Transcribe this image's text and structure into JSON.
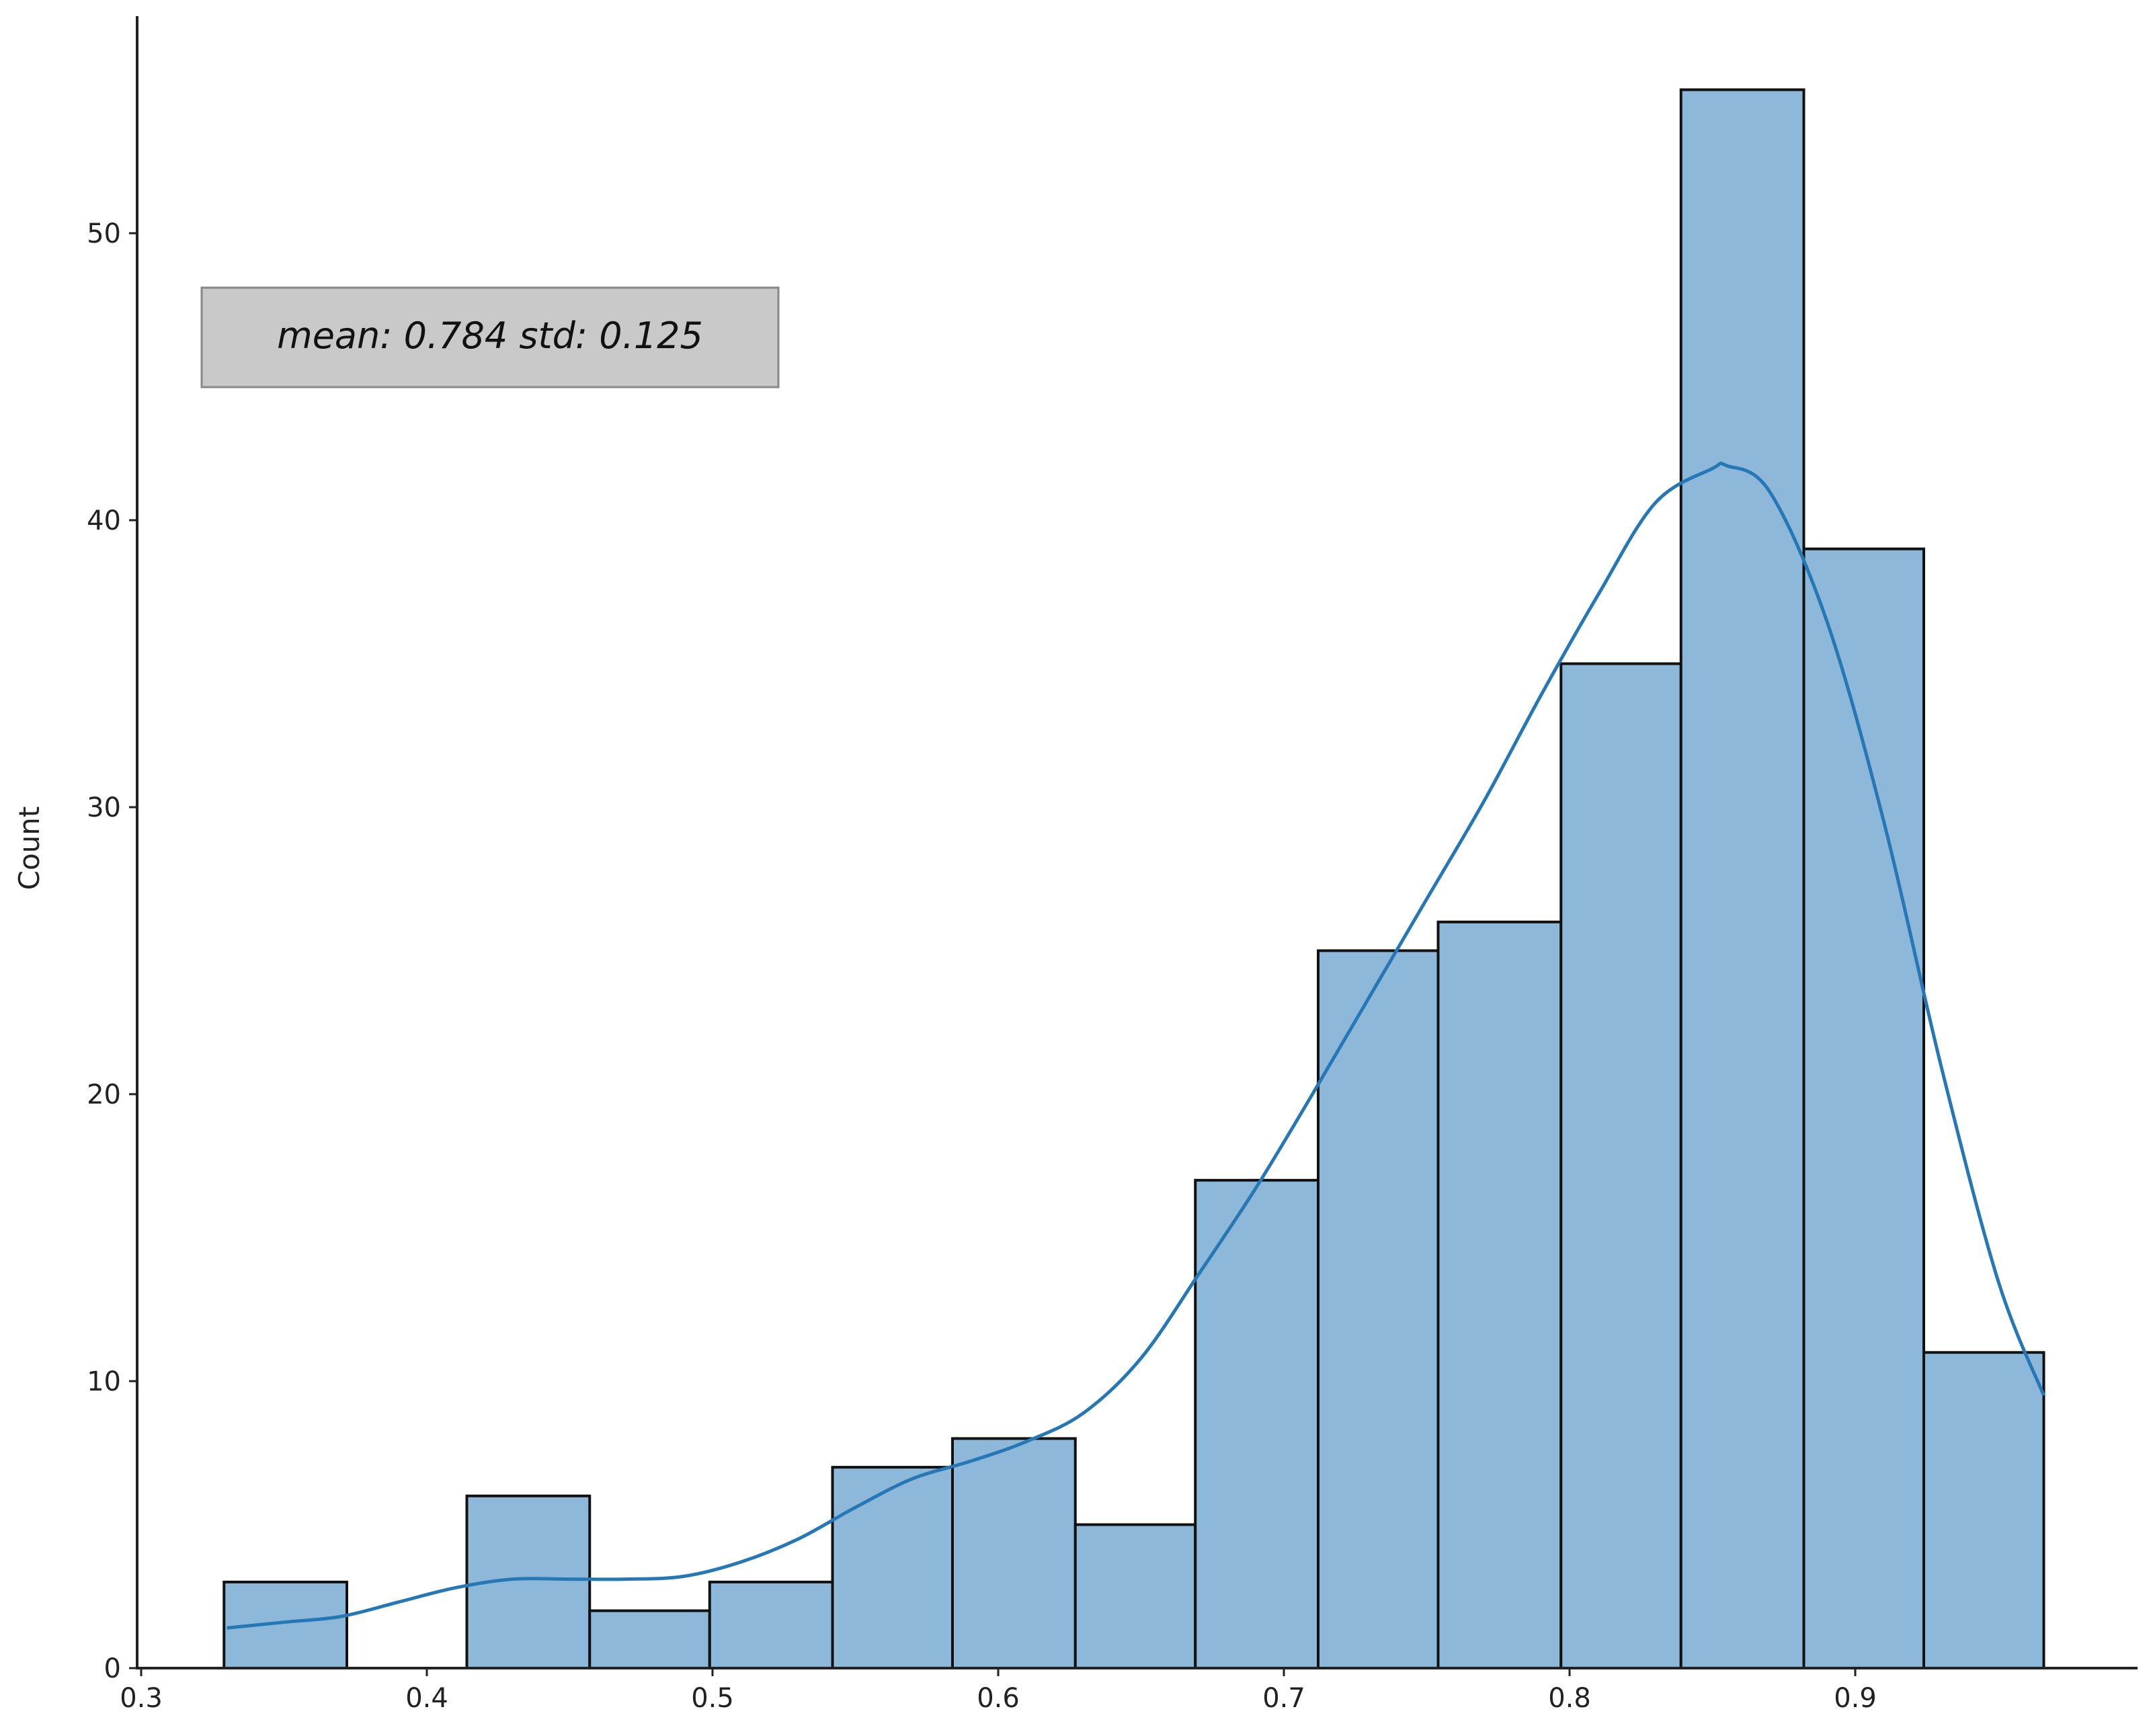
{
  "chart_data": {
    "type": "bar",
    "title": "",
    "xlabel": "",
    "ylabel": "Count",
    "xlim": [
      0.297,
      0.994
    ],
    "ylim": [
      0,
      57.7
    ],
    "x_ticks": [
      "0.3",
      "0.4",
      "0.5",
      "0.6",
      "0.7",
      "0.8",
      "0.9"
    ],
    "y_ticks": [
      "0",
      "10",
      "20",
      "30",
      "40",
      "50"
    ],
    "bins": [
      {
        "x0": 0.329,
        "x1": 0.372,
        "count": 3
      },
      {
        "x0": 0.372,
        "x1": 0.414,
        "count": 0
      },
      {
        "x0": 0.414,
        "x1": 0.457,
        "count": 6
      },
      {
        "x0": 0.457,
        "x1": 0.499,
        "count": 2
      },
      {
        "x0": 0.499,
        "x1": 0.542,
        "count": 3
      },
      {
        "x0": 0.542,
        "x1": 0.584,
        "count": 7
      },
      {
        "x0": 0.584,
        "x1": 0.627,
        "count": 8
      },
      {
        "x0": 0.627,
        "x1": 0.669,
        "count": 5
      },
      {
        "x0": 0.669,
        "x1": 0.712,
        "count": 17
      },
      {
        "x0": 0.712,
        "x1": 0.754,
        "count": 25
      },
      {
        "x0": 0.754,
        "x1": 0.797,
        "count": 26
      },
      {
        "x0": 0.797,
        "x1": 0.839,
        "count": 35
      },
      {
        "x0": 0.839,
        "x1": 0.882,
        "count": 55
      },
      {
        "x0": 0.882,
        "x1": 0.924,
        "count": 39
      },
      {
        "x0": 0.924,
        "x1": 0.966,
        "count": 11
      }
    ],
    "kde": {
      "x": [
        0.33,
        0.35,
        0.37,
        0.39,
        0.41,
        0.43,
        0.45,
        0.47,
        0.49,
        0.51,
        0.53,
        0.55,
        0.57,
        0.59,
        0.61,
        0.63,
        0.65,
        0.67,
        0.69,
        0.71,
        0.73,
        0.75,
        0.77,
        0.79,
        0.81,
        0.83,
        0.85,
        0.855,
        0.87,
        0.89,
        0.91,
        0.93,
        0.95,
        0.966
      ],
      "y": [
        1.4,
        1.6,
        1.8,
        2.3,
        2.8,
        3.1,
        3.1,
        3.1,
        3.2,
        3.7,
        4.5,
        5.6,
        6.6,
        7.2,
        7.9,
        8.9,
        10.8,
        13.7,
        16.7,
        20.0,
        23.4,
        26.8,
        30.2,
        33.9,
        37.4,
        40.6,
        41.8,
        41.9,
        41.0,
        36.5,
        29.5,
        21.0,
        13.5,
        9.5
      ]
    },
    "annotation": "mean: 0.784 std: 0.125",
    "colors": {
      "bar_fill": "#8eb8d9",
      "bar_edge": "#111111",
      "kde_line": "#2577b5",
      "annotation_bg": "#c9c9c9"
    },
    "grid": false,
    "legend": "none"
  }
}
